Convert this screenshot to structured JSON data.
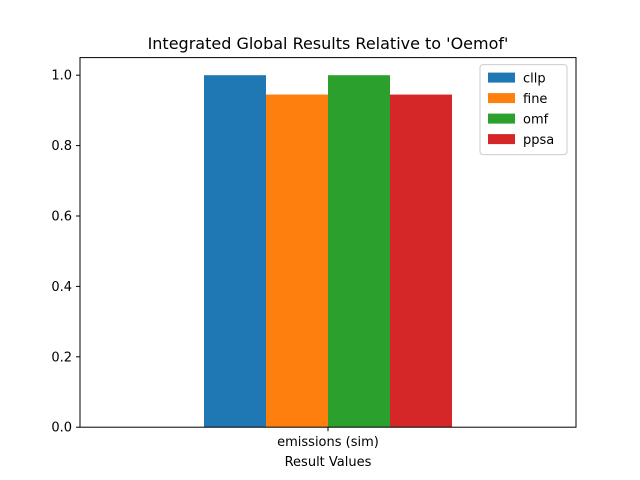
{
  "chart_data": {
    "type": "bar",
    "title": "Integrated Global Results Relative to 'Oemof'",
    "xlabel": "Result Values",
    "ylabel": "",
    "categories": [
      "emissions (sim)"
    ],
    "series": [
      {
        "name": "cllp",
        "values": [
          1.0
        ],
        "color": "#1f77b4"
      },
      {
        "name": "fine",
        "values": [
          0.945
        ],
        "color": "#ff7f0e"
      },
      {
        "name": "omf",
        "values": [
          1.0
        ],
        "color": "#2ca02c"
      },
      {
        "name": "ppsa",
        "values": [
          0.945
        ],
        "color": "#d62728"
      }
    ],
    "ylim": [
      0,
      1.05
    ],
    "yticks": [
      "0.0",
      "0.2",
      "0.4",
      "0.6",
      "0.8",
      "1.0"
    ],
    "grid": false,
    "legend_position": "top-right"
  }
}
